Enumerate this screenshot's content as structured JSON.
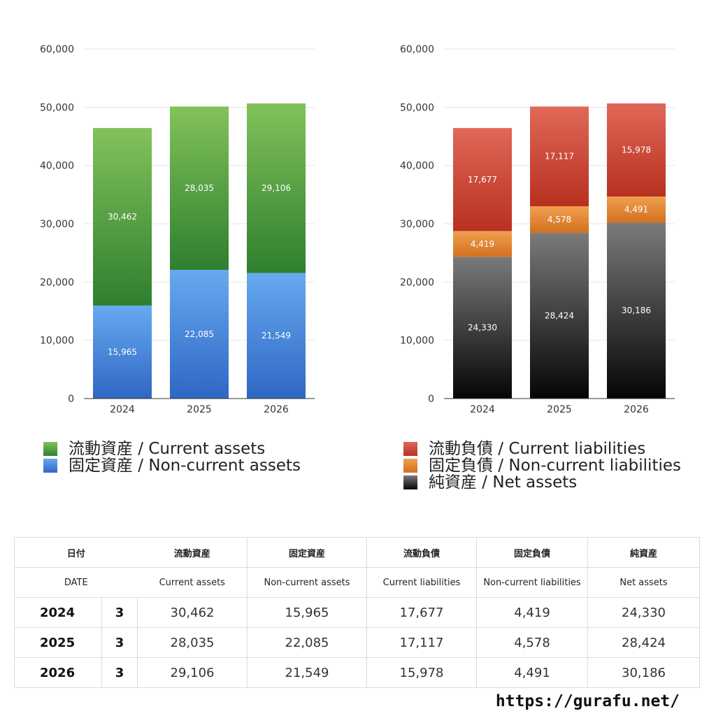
{
  "chart_data": [
    {
      "type": "bar",
      "stacked": true,
      "categories": [
        "2024",
        "2025",
        "2026"
      ],
      "ylim": [
        0,
        60000
      ],
      "yticks": [
        0,
        10000,
        20000,
        30000,
        40000,
        50000,
        60000
      ],
      "ytick_labels": [
        "0",
        "10,000",
        "20,000",
        "30,000",
        "40,000",
        "50,000",
        "60,000"
      ],
      "grid": true,
      "legend_position": "bottom",
      "series": [
        {
          "name": "固定資産 / Non-current assets",
          "values": [
            15965,
            22085,
            21549
          ],
          "labels": [
            "15,965",
            "22,085",
            "21,549"
          ],
          "color_top": "#66aaf0",
          "color_bottom": "#2f66c4"
        },
        {
          "name": "流動資産 / Current assets",
          "values": [
            30462,
            28035,
            29106
          ],
          "labels": [
            "30,462",
            "28,035",
            "29,106"
          ],
          "color_top": "#82c25a",
          "color_bottom": "#2f7f2f"
        }
      ]
    },
    {
      "type": "bar",
      "stacked": true,
      "categories": [
        "2024",
        "2025",
        "2026"
      ],
      "ylim": [
        0,
        60000
      ],
      "yticks": [
        0,
        10000,
        20000,
        30000,
        40000,
        50000,
        60000
      ],
      "ytick_labels": [
        "0",
        "10,000",
        "20,000",
        "30,000",
        "40,000",
        "50,000",
        "60,000"
      ],
      "grid": true,
      "legend_position": "bottom",
      "series": [
        {
          "name": "純資産 / Net assets",
          "values": [
            24330,
            28424,
            30186
          ],
          "labels": [
            "24,330",
            "28,424",
            "30,186"
          ],
          "color_top": "#7a7a7a",
          "color_bottom": "#050505"
        },
        {
          "name": "固定負債 / Non-current liabilities",
          "values": [
            4419,
            4578,
            4491
          ],
          "labels": [
            "4,419",
            "4,578",
            "4,491"
          ],
          "color_top": "#f0a050",
          "color_bottom": "#d27020"
        },
        {
          "name": "流動負債 / Current liabilities",
          "values": [
            17677,
            17117,
            15978
          ],
          "labels": [
            "17,677",
            "17,117",
            "15,978"
          ],
          "color_top": "#e06858",
          "color_bottom": "#b83020"
        }
      ]
    }
  ],
  "legend_left": [
    {
      "label": "流動資産 / Current assets",
      "color_top": "#82c25a",
      "color_bottom": "#2f7f2f"
    },
    {
      "label": "固定資産 / Non-current assets",
      "color_top": "#66aaf0",
      "color_bottom": "#2f66c4"
    }
  ],
  "legend_right": [
    {
      "label": "流動負債 / Current liabilities",
      "color_top": "#e06858",
      "color_bottom": "#b83020"
    },
    {
      "label": "固定負債 / Non-current liabilities",
      "color_top": "#f0a050",
      "color_bottom": "#d27020"
    },
    {
      "label": "純資産 / Net assets",
      "color_top": "#7a7a7a",
      "color_bottom": "#050505"
    }
  ],
  "table": {
    "header_jp": [
      "日付",
      "流動資産",
      "固定資産",
      "流動負債",
      "固定負債",
      "純資産"
    ],
    "header_en": [
      "DATE",
      "Current assets",
      "Non-current assets",
      "Current liabilities",
      "Non-current liabilities",
      "Net assets"
    ],
    "rows": [
      {
        "year": "2024",
        "month": "3",
        "values": [
          "30,462",
          "15,965",
          "17,677",
          "4,419",
          "24,330"
        ]
      },
      {
        "year": "2025",
        "month": "3",
        "values": [
          "28,035",
          "22,085",
          "17,117",
          "4,578",
          "28,424"
        ]
      },
      {
        "year": "2026",
        "month": "3",
        "values": [
          "29,106",
          "21,549",
          "15,978",
          "4,491",
          "30,186"
        ]
      }
    ]
  },
  "site_url": "https://gurafu.net/"
}
